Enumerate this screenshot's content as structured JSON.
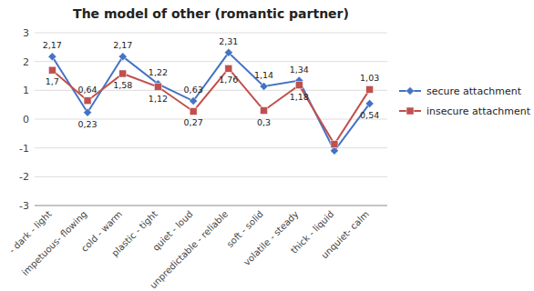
{
  "chart_data": {
    "type": "line",
    "title": "The model of other (romantic partner)",
    "categories": [
      "- dark - light",
      "impetuous- flowing",
      "cold - warm",
      "plastic - tight",
      "quiet - loud",
      "unpredictable - reliable",
      "soft - solid",
      "volatile - steady",
      "thick - liquid",
      "unquiet- calm"
    ],
    "series": [
      {
        "name": "secure attachment",
        "color": "#4472C4",
        "marker": "diamond",
        "values": [
          2.17,
          0.23,
          2.17,
          1.22,
          0.63,
          2.31,
          1.14,
          1.34,
          -1.1,
          0.54
        ],
        "value_labels": [
          "2,17",
          "0,23",
          "2,17",
          "1,22",
          "0,63",
          "2,31",
          "1,14",
          "1,34",
          null,
          "0,54"
        ]
      },
      {
        "name": "insecure attachment",
        "color": "#C0504D",
        "marker": "square",
        "values": [
          1.7,
          0.64,
          1.58,
          1.12,
          0.27,
          1.76,
          0.3,
          1.18,
          -0.87,
          1.03
        ],
        "value_labels": [
          "1,7",
          "0,64",
          "1,58",
          "1,12",
          "0,27",
          "1,76",
          "0,3",
          "1,18",
          null,
          "1,03"
        ]
      }
    ],
    "ylim": [
      -3,
      3
    ],
    "yticks": [
      -3,
      -2,
      -1,
      0,
      1,
      2,
      3
    ],
    "grid": true,
    "legend": "right"
  }
}
